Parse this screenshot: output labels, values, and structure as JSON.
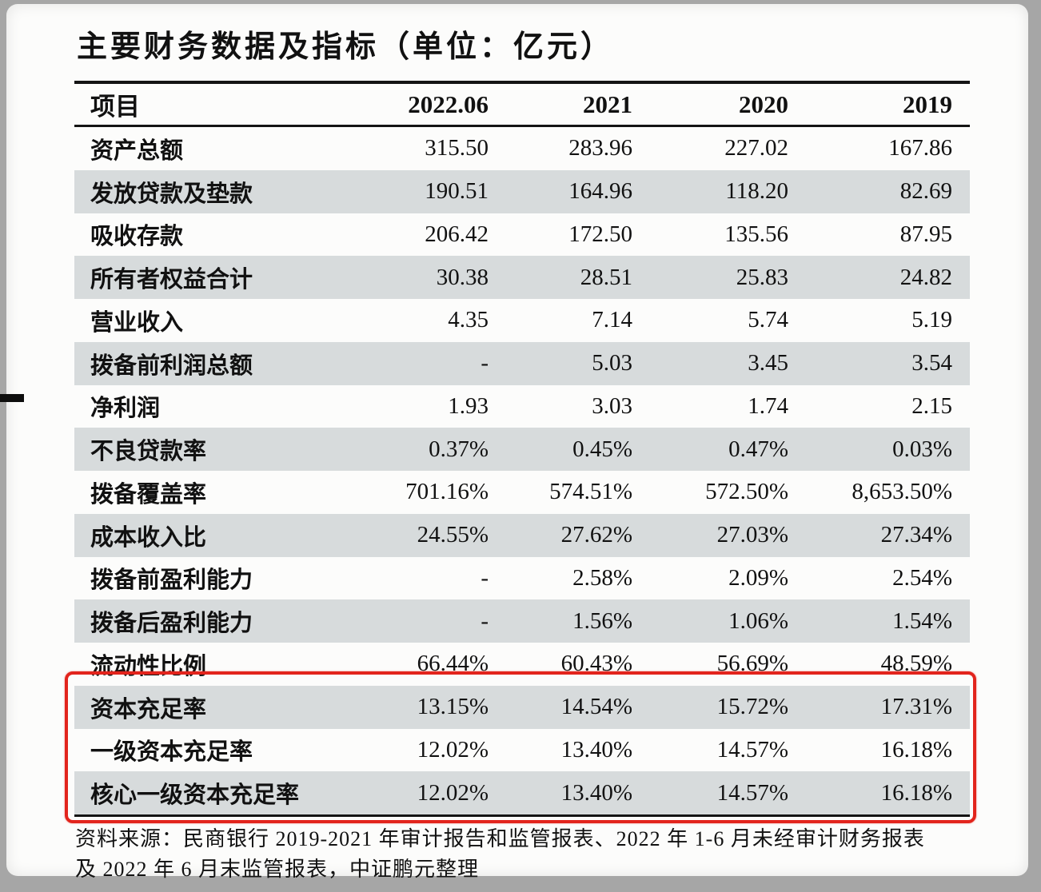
{
  "page": {
    "title": "主要财务数据及指标（单位：亿元）",
    "note_line1": "资料来源：民商银行 2019-2021 年审计报告和监管报表、2022 年 1-6 月未经审计财务报表",
    "note_line2": "及 2022 年 6 月末监管报表，中证鹏元整理"
  },
  "colors": {
    "row_shade": "#d7dbdc",
    "highlight_border": "#e2241c",
    "rule_line": "#141414",
    "scan_background": "#a6a6a6"
  },
  "chart_data": {
    "type": "table",
    "title": "主要财务数据及指标（单位：亿元）",
    "columns": [
      "项目",
      "2022.06",
      "2021",
      "2020",
      "2019"
    ],
    "rows": [
      {
        "label": "资产总额",
        "values": [
          "315.50",
          "283.96",
          "227.02",
          "167.86"
        ]
      },
      {
        "label": "发放贷款及垫款",
        "values": [
          "190.51",
          "164.96",
          "118.20",
          "82.69"
        ]
      },
      {
        "label": "吸收存款",
        "values": [
          "206.42",
          "172.50",
          "135.56",
          "87.95"
        ]
      },
      {
        "label": "所有者权益合计",
        "values": [
          "30.38",
          "28.51",
          "25.83",
          "24.82"
        ]
      },
      {
        "label": "营业收入",
        "values": [
          "4.35",
          "7.14",
          "5.74",
          "5.19"
        ]
      },
      {
        "label": "拨备前利润总额",
        "values": [
          "-",
          "5.03",
          "3.45",
          "3.54"
        ]
      },
      {
        "label": "净利润",
        "values": [
          "1.93",
          "3.03",
          "1.74",
          "2.15"
        ]
      },
      {
        "label": "不良贷款率",
        "values": [
          "0.37%",
          "0.45%",
          "0.47%",
          "0.03%"
        ]
      },
      {
        "label": "拨备覆盖率",
        "values": [
          "701.16%",
          "574.51%",
          "572.50%",
          "8,653.50%"
        ]
      },
      {
        "label": "成本收入比",
        "values": [
          "24.55%",
          "27.62%",
          "27.03%",
          "27.34%"
        ]
      },
      {
        "label": "拨备前盈利能力",
        "values": [
          "-",
          "2.58%",
          "2.09%",
          "2.54%"
        ]
      },
      {
        "label": "拨备后盈利能力",
        "values": [
          "-",
          "1.56%",
          "1.06%",
          "1.54%"
        ]
      },
      {
        "label": "流动性比例",
        "values": [
          "66.44%",
          "60.43%",
          "56.69%",
          "48.59%"
        ]
      },
      {
        "label": "资本充足率",
        "values": [
          "13.15%",
          "14.54%",
          "15.72%",
          "17.31%"
        ]
      },
      {
        "label": "一级资本充足率",
        "values": [
          "12.02%",
          "13.40%",
          "14.57%",
          "16.18%"
        ]
      },
      {
        "label": "核心一级资本充足率",
        "values": [
          "12.02%",
          "13.40%",
          "14.57%",
          "16.18%"
        ]
      }
    ],
    "highlighted_rows": [
      "资本充足率",
      "一级资本充足率",
      "核心一级资本充足率"
    ]
  }
}
